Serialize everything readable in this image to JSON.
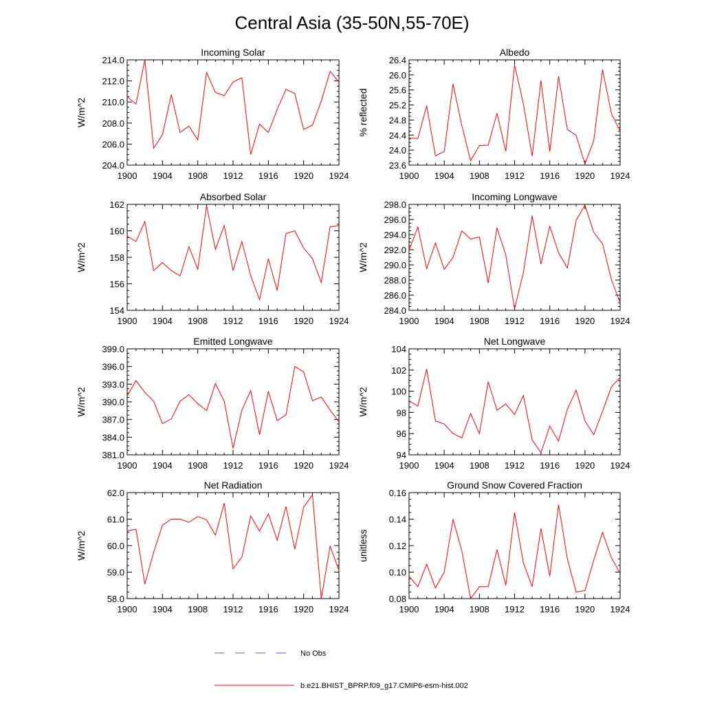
{
  "page_title": "Central Asia (35-50N,55-70E)",
  "colors": {
    "model": "#ff0000",
    "obs": "#5a5ae6",
    "axis": "#000000"
  },
  "legend": {
    "obs_label": "No Obs",
    "model_label": "b.e21.BHIST_BPRP.f09_g17.CMIP6-esm-hist.002"
  },
  "chart_data": [
    {
      "type": "line",
      "title": "Incoming Solar",
      "ylabel": "W/m^2",
      "xlim": [
        1900,
        1924
      ],
      "ylim": [
        204,
        214
      ],
      "xticks": [
        1900,
        1904,
        1908,
        1912,
        1916,
        1920,
        1924
      ],
      "xtick_labels": [
        "1900",
        "1904",
        "1908",
        "1912",
        "1916",
        "1920",
        "1924"
      ],
      "yticks": [
        204,
        206,
        208,
        210,
        212,
        214
      ],
      "ytick_labels": [
        "204.0",
        "206.0",
        "208.0",
        "210.0",
        "212.0",
        "214.0"
      ],
      "x": [
        1900,
        1901,
        1902,
        1903,
        1904,
        1905,
        1906,
        1907,
        1908,
        1909,
        1910,
        1911,
        1912,
        1913,
        1914,
        1915,
        1916,
        1917,
        1918,
        1919,
        1920,
        1921,
        1922,
        1923,
        1924
      ],
      "series": [
        {
          "values": [
            210.5,
            209.8,
            214.0,
            205.6,
            206.9,
            210.7,
            207.1,
            207.7,
            206.4,
            212.8,
            210.9,
            210.6,
            211.9,
            212.3,
            205.0,
            207.9,
            207.1,
            209.3,
            211.2,
            210.8,
            207.4,
            207.8,
            210.1,
            212.9,
            211.9
          ]
        }
      ]
    },
    {
      "type": "line",
      "title": "Albedo",
      "ylabel": "% reflected",
      "xlim": [
        1900,
        1924
      ],
      "ylim": [
        23.6,
        26.4
      ],
      "xticks": [
        1900,
        1904,
        1908,
        1912,
        1916,
        1920,
        1924
      ],
      "xtick_labels": [
        "1900",
        "1904",
        "1908",
        "1912",
        "1916",
        "1920",
        "1924"
      ],
      "yticks": [
        23.6,
        24.0,
        24.4,
        24.8,
        25.2,
        25.6,
        26.0,
        26.4
      ],
      "ytick_labels": [
        "23.6",
        "24.0",
        "24.4",
        "24.8",
        "25.2",
        "25.6",
        "26.0",
        "26.4"
      ],
      "x": [
        1900,
        1901,
        1902,
        1903,
        1904,
        1905,
        1906,
        1907,
        1908,
        1909,
        1910,
        1911,
        1912,
        1913,
        1914,
        1915,
        1916,
        1917,
        1918,
        1919,
        1920,
        1921,
        1922,
        1923,
        1924
      ],
      "series": [
        {
          "values": [
            24.32,
            24.31,
            25.18,
            23.85,
            23.96,
            25.76,
            24.65,
            23.72,
            24.12,
            24.13,
            24.98,
            23.97,
            26.26,
            25.23,
            23.84,
            25.85,
            23.96,
            25.96,
            24.55,
            24.39,
            23.63,
            24.25,
            26.14,
            24.98,
            24.5
          ]
        }
      ]
    },
    {
      "type": "line",
      "title": "Absorbed Solar",
      "ylabel": "W/m^2",
      "xlim": [
        1900,
        1924
      ],
      "ylim": [
        154,
        162
      ],
      "xticks": [
        1900,
        1904,
        1908,
        1912,
        1916,
        1920,
        1924
      ],
      "xtick_labels": [
        "1900",
        "1904",
        "1908",
        "1912",
        "1916",
        "1920",
        "1924"
      ],
      "yticks": [
        154,
        156,
        158,
        160,
        162
      ],
      "ytick_labels": [
        "154",
        "156",
        "158",
        "160",
        "162"
      ],
      "x": [
        1900,
        1901,
        1902,
        1903,
        1904,
        1905,
        1906,
        1907,
        1908,
        1909,
        1910,
        1911,
        1912,
        1913,
        1914,
        1915,
        1916,
        1917,
        1918,
        1919,
        1920,
        1921,
        1922,
        1923,
        1924
      ],
      "series": [
        {
          "values": [
            159.6,
            159.2,
            160.7,
            157.0,
            157.6,
            157.0,
            156.6,
            158.8,
            157.1,
            161.9,
            158.6,
            160.4,
            157.0,
            159.2,
            156.6,
            154.8,
            157.9,
            155.5,
            159.8,
            160.0,
            158.7,
            157.9,
            156.1,
            160.3,
            160.4
          ]
        }
      ]
    },
    {
      "type": "line",
      "title": "Incoming Longwave",
      "ylabel": "W/m^2",
      "xlim": [
        1900,
        1924
      ],
      "ylim": [
        284,
        298
      ],
      "xticks": [
        1900,
        1904,
        1908,
        1912,
        1916,
        1920,
        1924
      ],
      "xtick_labels": [
        "1900",
        "1904",
        "1908",
        "1912",
        "1916",
        "1920",
        "1924"
      ],
      "yticks": [
        284,
        286,
        288,
        290,
        292,
        294,
        296,
        298
      ],
      "ytick_labels": [
        "284.0",
        "286.0",
        "288.0",
        "290.0",
        "292.0",
        "294.0",
        "296.0",
        "298.0"
      ],
      "x": [
        1900,
        1901,
        1902,
        1903,
        1904,
        1905,
        1906,
        1907,
        1908,
        1909,
        1910,
        1911,
        1912,
        1913,
        1914,
        1915,
        1916,
        1917,
        1918,
        1919,
        1920,
        1921,
        1922,
        1923,
        1924
      ],
      "series": [
        {
          "values": [
            291.9,
            295.0,
            289.5,
            292.9,
            289.4,
            291.0,
            294.5,
            293.4,
            293.7,
            287.6,
            294.9,
            291.3,
            284.2,
            289.0,
            296.5,
            290.1,
            295.1,
            291.6,
            289.6,
            295.9,
            297.9,
            294.3,
            292.8,
            288.1,
            285.0
          ]
        }
      ]
    },
    {
      "type": "line",
      "title": "Emitted Longwave",
      "ylabel": "W/m^2",
      "xlim": [
        1900,
        1924
      ],
      "ylim": [
        381,
        399
      ],
      "xticks": [
        1900,
        1904,
        1908,
        1912,
        1916,
        1920,
        1924
      ],
      "xtick_labels": [
        "1900",
        "1904",
        "1908",
        "1912",
        "1916",
        "1920",
        "1924"
      ],
      "yticks": [
        381,
        384,
        387,
        390,
        393,
        396,
        399
      ],
      "ytick_labels": [
        "381.0",
        "384.0",
        "387.0",
        "390.0",
        "393.0",
        "396.0",
        "399.0"
      ],
      "x": [
        1900,
        1901,
        1902,
        1903,
        1904,
        1905,
        1906,
        1907,
        1908,
        1909,
        1910,
        1911,
        1912,
        1913,
        1914,
        1915,
        1916,
        1917,
        1918,
        1919,
        1920,
        1921,
        1922,
        1923,
        1924
      ],
      "series": [
        {
          "values": [
            391.0,
            393.6,
            391.6,
            390.1,
            386.3,
            387.1,
            390.1,
            391.2,
            389.7,
            388.5,
            393.1,
            390.1,
            382.1,
            388.6,
            391.9,
            384.4,
            391.8,
            386.8,
            387.8,
            396.0,
            395.1,
            390.2,
            390.8,
            388.6,
            386.6
          ]
        }
      ]
    },
    {
      "type": "line",
      "title": "Net Longwave",
      "ylabel": "W/m^2",
      "xlim": [
        1900,
        1924
      ],
      "ylim": [
        94,
        104
      ],
      "xticks": [
        1900,
        1904,
        1908,
        1912,
        1916,
        1920,
        1924
      ],
      "xtick_labels": [
        "1900",
        "1904",
        "1908",
        "1912",
        "1916",
        "1920",
        "1924"
      ],
      "yticks": [
        94,
        96,
        98,
        100,
        102,
        104
      ],
      "ytick_labels": [
        "94",
        "96",
        "98",
        "100",
        "102",
        "104"
      ],
      "x": [
        1900,
        1901,
        1902,
        1903,
        1904,
        1905,
        1906,
        1907,
        1908,
        1909,
        1910,
        1911,
        1912,
        1913,
        1914,
        1915,
        1916,
        1917,
        1918,
        1919,
        1920,
        1921,
        1922,
        1923,
        1924
      ],
      "series": [
        {
          "values": [
            99.1,
            98.6,
            102.1,
            97.2,
            96.9,
            96.0,
            95.6,
            97.9,
            96.0,
            100.9,
            98.2,
            98.8,
            97.8,
            99.6,
            95.4,
            94.2,
            96.7,
            95.3,
            98.3,
            100.1,
            97.2,
            95.9,
            98.1,
            100.4,
            101.3
          ]
        }
      ]
    },
    {
      "type": "line",
      "title": "Net Radiation",
      "ylabel": "W/m^2",
      "xlim": [
        1900,
        1924
      ],
      "ylim": [
        58,
        62
      ],
      "xticks": [
        1900,
        1904,
        1908,
        1912,
        1916,
        1920,
        1924
      ],
      "xtick_labels": [
        "1900",
        "1904",
        "1908",
        "1912",
        "1916",
        "1920",
        "1924"
      ],
      "yticks": [
        58,
        59,
        60,
        61,
        62
      ],
      "ytick_labels": [
        "58.0",
        "59.0",
        "60.0",
        "61.0",
        "62.0"
      ],
      "x": [
        1900,
        1901,
        1902,
        1903,
        1904,
        1905,
        1906,
        1907,
        1908,
        1909,
        1910,
        1911,
        1912,
        1913,
        1914,
        1915,
        1916,
        1917,
        1918,
        1919,
        1920,
        1921,
        1922,
        1923,
        1924
      ],
      "series": [
        {
          "values": [
            60.55,
            60.62,
            58.55,
            59.75,
            60.77,
            61.0,
            61.0,
            60.88,
            61.1,
            60.97,
            60.4,
            61.6,
            59.12,
            59.57,
            61.12,
            60.55,
            61.2,
            60.2,
            61.48,
            59.87,
            61.45,
            61.92,
            58.0,
            59.98,
            59.07
          ]
        }
      ]
    },
    {
      "type": "line",
      "title": "Ground Snow Covered Fraction",
      "ylabel": "unitless",
      "xlim": [
        1900,
        1924
      ],
      "ylim": [
        0.08,
        0.16
      ],
      "xticks": [
        1900,
        1904,
        1908,
        1912,
        1916,
        1920,
        1924
      ],
      "xtick_labels": [
        "1900",
        "1904",
        "1908",
        "1912",
        "1916",
        "1920",
        "1924"
      ],
      "yticks": [
        0.08,
        0.1,
        0.12,
        0.14,
        0.16
      ],
      "ytick_labels": [
        "0.08",
        "0.10",
        "0.12",
        "0.14",
        "0.16"
      ],
      "x": [
        1900,
        1901,
        1902,
        1903,
        1904,
        1905,
        1906,
        1907,
        1908,
        1909,
        1910,
        1911,
        1912,
        1913,
        1914,
        1915,
        1916,
        1917,
        1918,
        1919,
        1920,
        1921,
        1922,
        1923,
        1924
      ],
      "series": [
        {
          "values": [
            0.097,
            0.089,
            0.106,
            0.088,
            0.1,
            0.14,
            0.116,
            0.08,
            0.089,
            0.089,
            0.117,
            0.09,
            0.145,
            0.107,
            0.089,
            0.133,
            0.097,
            0.151,
            0.11,
            0.085,
            0.086,
            0.109,
            0.13,
            0.111,
            0.099
          ]
        }
      ]
    }
  ]
}
